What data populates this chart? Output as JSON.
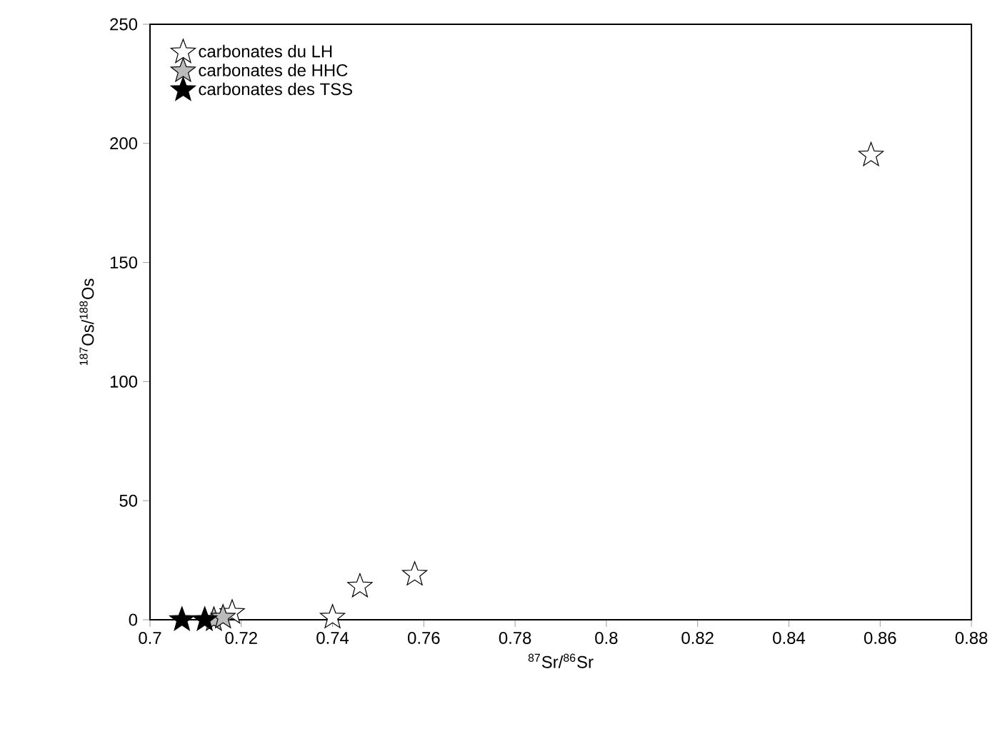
{
  "chart_data": {
    "type": "scatter",
    "xlabel": "$^{87}$Sr/$^{86}$Sr",
    "ylabel": "$^{187}$Os/$^{188}$Os",
    "xlim": [
      0.7,
      0.88
    ],
    "ylim": [
      0,
      250
    ],
    "xticks": [
      0.7,
      0.72,
      0.74,
      0.76,
      0.78,
      0.8,
      0.82,
      0.84,
      0.86,
      0.88
    ],
    "yticks": [
      0,
      50,
      100,
      150,
      200,
      250
    ],
    "marker": "star",
    "legend": "top left",
    "grid": false,
    "series": [
      {
        "name": "carbonates du LH",
        "color": "#ffffff",
        "x": [
          0.718,
          0.74,
          0.746,
          0.758,
          0.858
        ],
        "values": [
          3,
          1,
          14,
          19,
          195
        ]
      },
      {
        "name": "carbonates de HHC",
        "color": "#bbbbbb",
        "x": [
          0.714,
          0.716
        ],
        "values": [
          0,
          1
        ]
      },
      {
        "name": "carbonates des TSS",
        "color": "#000000",
        "x": [
          0.707,
          0.712
        ],
        "values": [
          0,
          0
        ]
      }
    ]
  }
}
